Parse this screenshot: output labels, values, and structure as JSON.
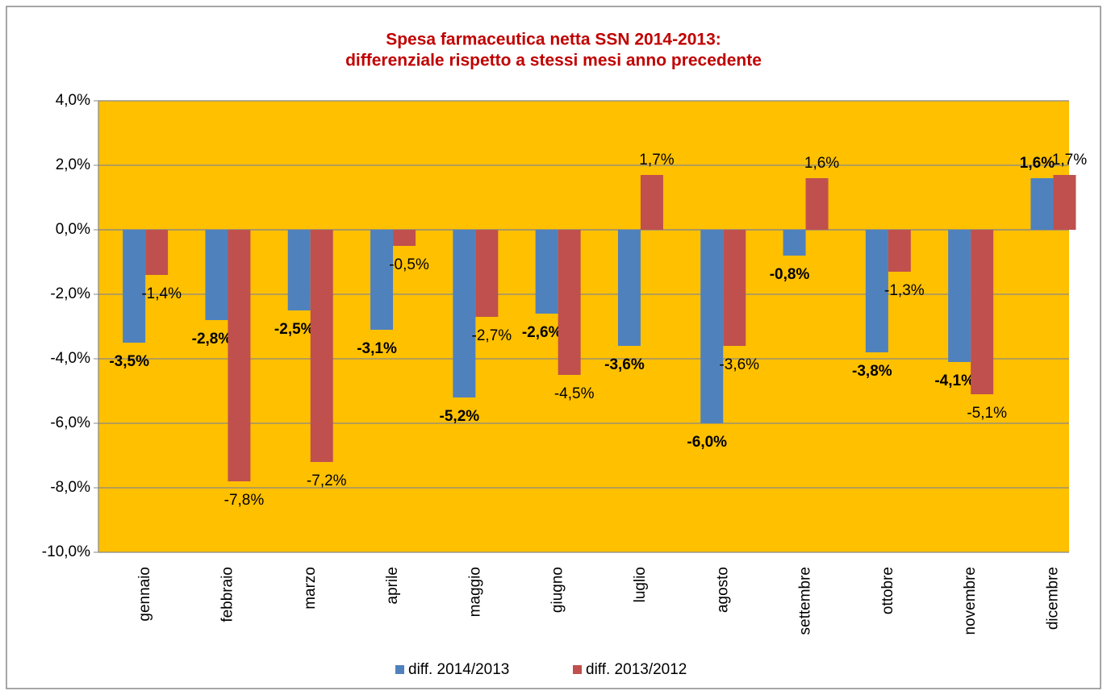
{
  "chart_data": {
    "type": "bar",
    "title": [
      "Spesa farmaceutica netta SSN 2014-2013:",
      "differenziale rispetto a stessi  mesi anno precedente"
    ],
    "categories": [
      "gennaio",
      "febbraio",
      "marzo",
      "aprile",
      "maggio",
      "giugno",
      "luglio",
      "agosto",
      "settembre",
      "ottobre",
      "novembre",
      "dicembre"
    ],
    "series": [
      {
        "name": "diff. 2014/2013",
        "color": "#4f81bd",
        "values": [
          -3.5,
          -2.8,
          -2.5,
          -3.1,
          -5.2,
          -2.6,
          -3.6,
          -6.0,
          -0.8,
          -3.8,
          -4.1,
          1.6
        ],
        "value_labels": [
          "-3,5%",
          "-2,8%",
          "-2,5%",
          "-3,1%",
          "-5,2%",
          "-2,6%",
          "-3,6%",
          "-6,0%",
          "-0,8%",
          "-3,8%",
          "-4,1%",
          "1,6%"
        ]
      },
      {
        "name": "diff. 2013/2012",
        "color": "#c0504d",
        "values": [
          -1.4,
          -7.8,
          -7.2,
          -0.5,
          -2.7,
          -4.5,
          1.7,
          -3.6,
          1.6,
          -1.3,
          -5.1,
          1.7
        ],
        "value_labels": [
          "-1,4%",
          "-7,8%",
          "-7,2%",
          "-0,5%",
          "-2,7%",
          "-4,5%",
          "1,7%",
          "-3,6%",
          "1,6%",
          "-1,3%",
          "-5,1%",
          "1,7%"
        ]
      }
    ],
    "ylim": [
      -10,
      4
    ],
    "yticks": [
      {
        "value": -10,
        "label": "-10,0%"
      },
      {
        "value": -8,
        "label": "-8,0%"
      },
      {
        "value": -6,
        "label": "-6,0%"
      },
      {
        "value": -4,
        "label": "-4,0%"
      },
      {
        "value": -2,
        "label": "-2,0%"
      },
      {
        "value": 0,
        "label": "0,0%"
      },
      {
        "value": 2,
        "label": "2,0%"
      },
      {
        "value": 4,
        "label": "4,0%"
      }
    ],
    "grid": true,
    "plot_background": "#ffc000",
    "legend": "bottom"
  }
}
